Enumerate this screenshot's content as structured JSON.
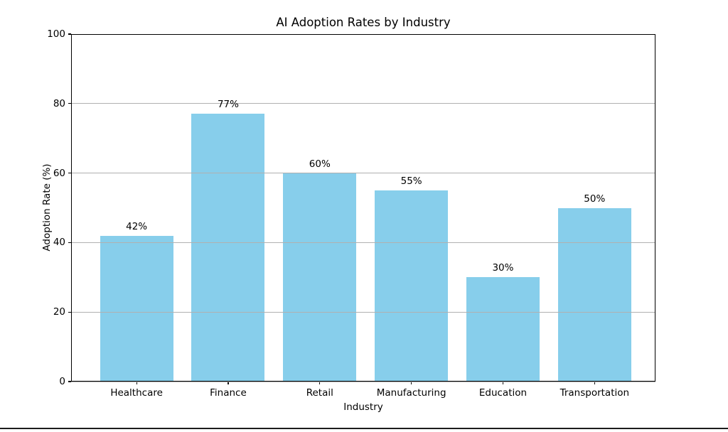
{
  "chart_data": {
    "type": "bar",
    "title": "AI Adoption Rates by Industry",
    "xlabel": "Industry",
    "ylabel": "Adoption Rate (%)",
    "categories": [
      "Healthcare",
      "Finance",
      "Retail",
      "Manufacturing",
      "Education",
      "Transportation"
    ],
    "values": [
      42,
      77,
      60,
      55,
      30,
      50
    ],
    "value_labels": [
      "42%",
      "77%",
      "60%",
      "55%",
      "30%",
      "50%"
    ],
    "ylim": [
      0,
      100
    ],
    "yticks": [
      0,
      20,
      40,
      60,
      80,
      100
    ],
    "ytick_labels": [
      "0",
      "20",
      "40",
      "60",
      "80",
      "100"
    ],
    "bar_color": "#87CEEB",
    "grid": true,
    "grid_color": "#b0b0b0",
    "grid_on_top_of_bars": true,
    "legend_position": "none"
  }
}
